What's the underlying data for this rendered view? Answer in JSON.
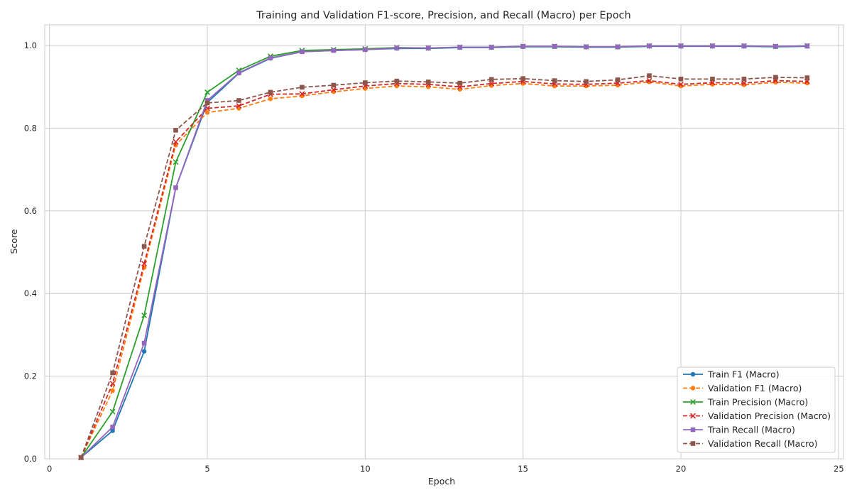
{
  "chart_data": {
    "type": "line",
    "title": "Training and Validation F1-score, Precision, and Recall (Macro) per Epoch",
    "xlabel": "Epoch",
    "ylabel": "Score",
    "xlim": [
      -0.15,
      25.15
    ],
    "ylim": [
      0.0,
      1.05
    ],
    "xticks": [
      0,
      5,
      10,
      15,
      20,
      25
    ],
    "yticks": [
      0.0,
      0.2,
      0.4,
      0.6,
      0.8,
      1.0
    ],
    "xtick_labels": [
      "0",
      "5",
      "10",
      "15",
      "20",
      "25"
    ],
    "ytick_labels": [
      "0.0",
      "0.2",
      "0.4",
      "0.6",
      "0.8",
      "1.0"
    ],
    "grid": true,
    "legend_position": "lower-right",
    "x": [
      1,
      2,
      3,
      4,
      5,
      6,
      7,
      8,
      9,
      10,
      11,
      12,
      13,
      14,
      15,
      16,
      17,
      18,
      19,
      20,
      21,
      22,
      23,
      24
    ],
    "series": [
      {
        "name": "Train F1 (Macro)",
        "color": "#1f77b4",
        "dash": "solid",
        "marker": "circle",
        "values": [
          0.003,
          0.068,
          0.26,
          0.656,
          0.862,
          0.933,
          0.969,
          0.985,
          0.988,
          0.99,
          0.993,
          0.993,
          0.995,
          0.995,
          0.997,
          0.997,
          0.996,
          0.996,
          0.998,
          0.998,
          0.998,
          0.998,
          0.997,
          0.998
        ]
      },
      {
        "name": "Validation F1 (Macro)",
        "color": "#ff7f0e",
        "dash": "dashed",
        "marker": "circle",
        "values": [
          0.003,
          0.165,
          0.463,
          0.759,
          0.838,
          0.848,
          0.871,
          0.878,
          0.888,
          0.896,
          0.902,
          0.9,
          0.894,
          0.903,
          0.908,
          0.902,
          0.902,
          0.904,
          0.912,
          0.902,
          0.906,
          0.905,
          0.911,
          0.909
        ]
      },
      {
        "name": "Train Precision (Macro)",
        "color": "#2ca02c",
        "dash": "solid",
        "marker": "x",
        "values": [
          0.003,
          0.114,
          0.347,
          0.718,
          0.887,
          0.94,
          0.974,
          0.988,
          0.99,
          0.992,
          0.995,
          0.994,
          0.996,
          0.996,
          0.998,
          0.998,
          0.997,
          0.997,
          0.999,
          0.999,
          0.999,
          0.999,
          0.998,
          0.999
        ]
      },
      {
        "name": "Validation Precision (Macro)",
        "color": "#d62728",
        "dash": "dashed",
        "marker": "x",
        "values": [
          0.003,
          0.182,
          0.472,
          0.767,
          0.848,
          0.854,
          0.882,
          0.883,
          0.893,
          0.902,
          0.908,
          0.906,
          0.9,
          0.908,
          0.913,
          0.907,
          0.906,
          0.909,
          0.915,
          0.906,
          0.91,
          0.909,
          0.915,
          0.913
        ]
      },
      {
        "name": "Train Recall (Macro)",
        "color": "#9467bd",
        "dash": "solid",
        "marker": "square",
        "values": [
          0.003,
          0.077,
          0.28,
          0.656,
          0.867,
          0.934,
          0.97,
          0.985,
          0.988,
          0.99,
          0.994,
          0.994,
          0.996,
          0.996,
          0.998,
          0.998,
          0.997,
          0.997,
          0.999,
          0.999,
          0.999,
          0.999,
          0.998,
          0.999
        ]
      },
      {
        "name": "Validation Recall (Macro)",
        "color": "#8c564b",
        "dash": "dashed",
        "marker": "square",
        "values": [
          0.003,
          0.208,
          0.514,
          0.795,
          0.861,
          0.867,
          0.887,
          0.899,
          0.904,
          0.91,
          0.914,
          0.912,
          0.909,
          0.918,
          0.92,
          0.915,
          0.913,
          0.917,
          0.927,
          0.919,
          0.919,
          0.919,
          0.923,
          0.922
        ]
      }
    ]
  }
}
